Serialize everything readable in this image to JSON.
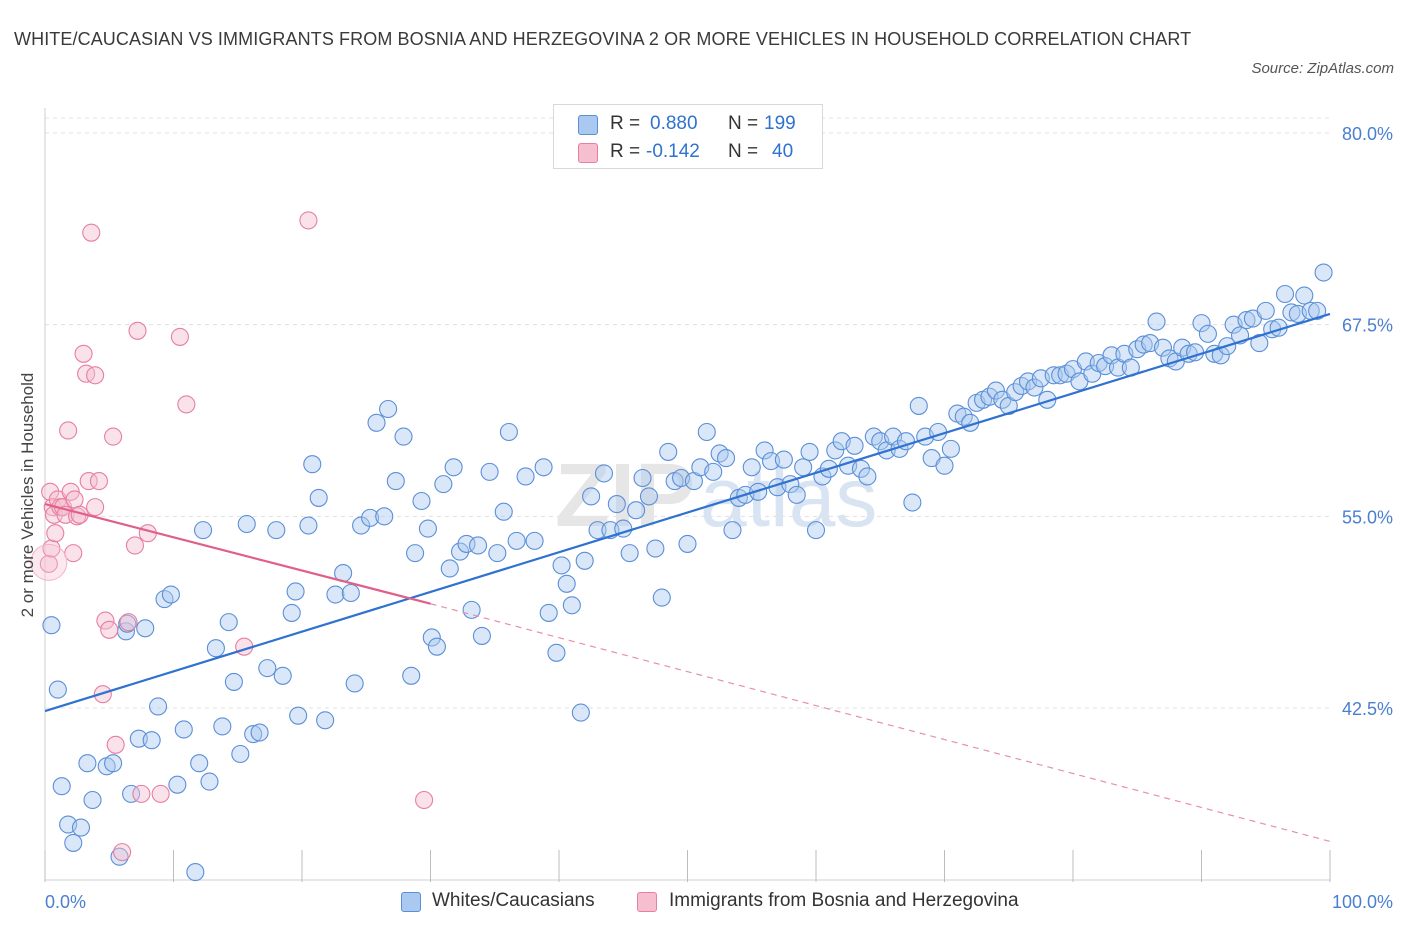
{
  "title": "WHITE/CAUCASIAN VS IMMIGRANTS FROM BOSNIA AND HERZEGOVINA 2 OR MORE VEHICLES IN HOUSEHOLD CORRELATION CHART",
  "source": "Source: ZipAtlas.com",
  "watermark": {
    "zip": "ZIP",
    "atlas": "atlas"
  },
  "colors": {
    "blue": "#5b8fd8",
    "blue_fill": "#aac9f0",
    "blue_line": "#2f72d0",
    "pink": "#e87ea0",
    "pink_fill": "#f5bfd0",
    "pink_line": "#e0608a",
    "axis_text": "#4a7fd0"
  },
  "legend": {
    "items": [
      {
        "r_label": "R =",
        "r_value": "0.880",
        "n_label": "N =",
        "n_value": "199"
      },
      {
        "r_label": "R =",
        "r_value": "-0.142",
        "n_label": "N =",
        "n_value": "40"
      }
    ]
  },
  "chart_data": {
    "type": "scatter",
    "title": "WHITE/CAUCASIAN VS IMMIGRANTS FROM BOSNIA AND HERZEGOVINA 2 OR MORE VEHICLES IN HOUSEHOLD CORRELATION CHART",
    "xlabel": "",
    "ylabel": "2 or more Vehicles in Household",
    "xlim": [
      0,
      100
    ],
    "ylim": [
      32,
      82
    ],
    "x_tick_labels": [
      "0.0%",
      "100.0%"
    ],
    "y_ticks": [
      42.5,
      55.0,
      67.5,
      80.0
    ],
    "y_tick_labels": [
      "42.5%",
      "55.0%",
      "67.5%",
      "80.0%"
    ],
    "grid": true,
    "legend_position": "top-center",
    "series": [
      {
        "name": "Whites/Caucasians",
        "color": "#5b8fd8",
        "trend": {
          "x": [
            0,
            100
          ],
          "y": [
            42.3,
            68.2
          ]
        },
        "points": [
          [
            0.5,
            47.9
          ],
          [
            1.0,
            43.7
          ],
          [
            1.3,
            37.4
          ],
          [
            1.8,
            34.9
          ],
          [
            2.2,
            33.7
          ],
          [
            2.8,
            34.7
          ],
          [
            3.3,
            38.9
          ],
          [
            3.7,
            36.5
          ],
          [
            4.8,
            38.7
          ],
          [
            5.3,
            38.9
          ],
          [
            5.8,
            32.8
          ],
          [
            6.3,
            47.5
          ],
          [
            6.4,
            48.0
          ],
          [
            6.7,
            36.9
          ],
          [
            7.3,
            40.5
          ],
          [
            7.8,
            47.7
          ],
          [
            8.3,
            40.4
          ],
          [
            8.8,
            42.6
          ],
          [
            9.3,
            49.6
          ],
          [
            9.8,
            49.9
          ],
          [
            10.3,
            37.5
          ],
          [
            10.8,
            41.1
          ],
          [
            11.7,
            31.8
          ],
          [
            12.0,
            38.9
          ],
          [
            12.3,
            54.1
          ],
          [
            12.8,
            37.7
          ],
          [
            13.3,
            46.4
          ],
          [
            13.8,
            41.3
          ],
          [
            14.3,
            48.1
          ],
          [
            14.7,
            44.2
          ],
          [
            15.2,
            39.5
          ],
          [
            15.7,
            54.5
          ],
          [
            16.2,
            40.8
          ],
          [
            16.7,
            40.9
          ],
          [
            17.3,
            45.1
          ],
          [
            18.0,
            54.1
          ],
          [
            18.5,
            44.6
          ],
          [
            19.2,
            48.7
          ],
          [
            19.5,
            50.1
          ],
          [
            19.7,
            42.0
          ],
          [
            20.5,
            54.4
          ],
          [
            20.8,
            58.4
          ],
          [
            21.3,
            56.2
          ],
          [
            21.8,
            41.7
          ],
          [
            22.6,
            49.9
          ],
          [
            23.2,
            51.3
          ],
          [
            23.8,
            50.0
          ],
          [
            24.1,
            44.1
          ],
          [
            24.6,
            54.4
          ],
          [
            25.3,
            54.9
          ],
          [
            25.8,
            61.1
          ],
          [
            26.4,
            55.0
          ],
          [
            26.7,
            62.0
          ],
          [
            27.3,
            57.3
          ],
          [
            27.9,
            60.2
          ],
          [
            28.5,
            44.6
          ],
          [
            28.8,
            52.6
          ],
          [
            29.3,
            56.0
          ],
          [
            29.8,
            54.2
          ],
          [
            30.1,
            47.1
          ],
          [
            31.0,
            57.1
          ],
          [
            31.5,
            51.6
          ],
          [
            31.8,
            58.2
          ],
          [
            32.3,
            52.7
          ],
          [
            32.8,
            53.2
          ],
          [
            33.2,
            48.9
          ],
          [
            33.7,
            53.1
          ],
          [
            34.0,
            47.2
          ],
          [
            34.6,
            57.9
          ],
          [
            35.2,
            52.6
          ],
          [
            35.7,
            55.3
          ],
          [
            36.1,
            60.5
          ],
          [
            36.7,
            53.4
          ],
          [
            37.4,
            57.6
          ],
          [
            38.1,
            53.4
          ],
          [
            38.8,
            58.2
          ],
          [
            39.2,
            48.7
          ],
          [
            39.8,
            46.1
          ],
          [
            40.2,
            51.8
          ],
          [
            40.6,
            50.6
          ],
          [
            41.0,
            49.2
          ],
          [
            41.7,
            42.2
          ],
          [
            42.0,
            52.1
          ],
          [
            42.5,
            56.3
          ],
          [
            43.0,
            54.1
          ],
          [
            43.5,
            57.8
          ],
          [
            44.0,
            54.1
          ],
          [
            44.5,
            55.8
          ],
          [
            45.0,
            54.2
          ],
          [
            45.5,
            52.6
          ],
          [
            46.0,
            55.4
          ],
          [
            46.5,
            57.5
          ],
          [
            47.0,
            56.3
          ],
          [
            47.5,
            52.9
          ],
          [
            48.0,
            49.7
          ],
          [
            48.5,
            59.2
          ],
          [
            49.0,
            57.3
          ],
          [
            49.5,
            57.5
          ],
          [
            50.0,
            53.2
          ],
          [
            50.5,
            57.3
          ],
          [
            51.0,
            58.2
          ],
          [
            51.5,
            60.5
          ],
          [
            52.0,
            57.9
          ],
          [
            52.5,
            59.1
          ],
          [
            53.0,
            58.8
          ],
          [
            53.5,
            54.1
          ],
          [
            54.0,
            56.2
          ],
          [
            54.5,
            56.4
          ],
          [
            55.0,
            58.2
          ],
          [
            55.5,
            56.6
          ],
          [
            56.0,
            59.3
          ],
          [
            56.5,
            58.6
          ],
          [
            57.0,
            56.9
          ],
          [
            57.5,
            58.7
          ],
          [
            58.0,
            57.1
          ],
          [
            58.5,
            56.4
          ],
          [
            59.0,
            58.2
          ],
          [
            59.5,
            59.2
          ],
          [
            60.0,
            54.1
          ],
          [
            60.5,
            57.6
          ],
          [
            61.0,
            58.1
          ],
          [
            61.5,
            59.3
          ],
          [
            62.0,
            59.9
          ],
          [
            62.5,
            58.3
          ],
          [
            63.0,
            59.6
          ],
          [
            63.5,
            58.1
          ],
          [
            64.0,
            57.6
          ],
          [
            64.5,
            60.2
          ],
          [
            65.0,
            59.9
          ],
          [
            65.5,
            59.3
          ],
          [
            66.0,
            60.2
          ],
          [
            66.5,
            59.4
          ],
          [
            67.0,
            59.9
          ],
          [
            67.5,
            55.9
          ],
          [
            68.0,
            62.2
          ],
          [
            68.5,
            60.2
          ],
          [
            69.0,
            58.8
          ],
          [
            69.5,
            60.5
          ],
          [
            70.0,
            58.3
          ],
          [
            70.5,
            59.4
          ],
          [
            71.0,
            61.7
          ],
          [
            71.5,
            61.5
          ],
          [
            72.0,
            61.1
          ],
          [
            72.5,
            62.4
          ],
          [
            73.0,
            62.6
          ],
          [
            73.5,
            62.8
          ],
          [
            74.0,
            63.2
          ],
          [
            74.5,
            62.6
          ],
          [
            75.0,
            62.2
          ],
          [
            75.5,
            63.1
          ],
          [
            76.0,
            63.5
          ],
          [
            76.5,
            63.8
          ],
          [
            77.0,
            63.4
          ],
          [
            77.5,
            64.0
          ],
          [
            78.0,
            62.6
          ],
          [
            78.5,
            64.2
          ],
          [
            79.0,
            64.2
          ],
          [
            79.5,
            64.3
          ],
          [
            80.0,
            64.6
          ],
          [
            80.5,
            63.8
          ],
          [
            81.0,
            65.1
          ],
          [
            81.5,
            64.3
          ],
          [
            82.0,
            65.0
          ],
          [
            82.5,
            64.8
          ],
          [
            83.0,
            65.5
          ],
          [
            83.5,
            64.7
          ],
          [
            84.0,
            65.6
          ],
          [
            84.5,
            64.7
          ],
          [
            85.0,
            65.9
          ],
          [
            85.5,
            66.2
          ],
          [
            86.0,
            66.3
          ],
          [
            86.5,
            67.7
          ],
          [
            87.0,
            66.0
          ],
          [
            87.5,
            65.3
          ],
          [
            88.0,
            65.1
          ],
          [
            88.5,
            66.0
          ],
          [
            89.0,
            65.6
          ],
          [
            89.5,
            65.7
          ],
          [
            90.0,
            67.6
          ],
          [
            90.5,
            66.9
          ],
          [
            91.0,
            65.6
          ],
          [
            91.5,
            65.5
          ],
          [
            92.0,
            66.1
          ],
          [
            92.5,
            67.5
          ],
          [
            93.0,
            66.8
          ],
          [
            93.5,
            67.8
          ],
          [
            94.0,
            67.9
          ],
          [
            94.5,
            66.3
          ],
          [
            95.0,
            68.4
          ],
          [
            95.5,
            67.2
          ],
          [
            96.0,
            67.3
          ],
          [
            96.5,
            69.5
          ],
          [
            97.0,
            68.3
          ],
          [
            97.5,
            68.2
          ],
          [
            98.0,
            69.4
          ],
          [
            98.5,
            68.4
          ],
          [
            99.0,
            68.4
          ],
          [
            99.5,
            70.9
          ],
          [
            30.5,
            46.5
          ]
        ]
      },
      {
        "name": "Immigrants from Bosnia and Herzegovina",
        "color": "#e87ea0",
        "trend": {
          "x": [
            0,
            30
          ],
          "y": [
            55.8,
            49.3
          ]
        },
        "trend_extension": {
          "x": [
            30,
            100
          ],
          "y": [
            49.3,
            33.8
          ]
        },
        "points": [
          [
            0.3,
            51.9
          ],
          [
            0.4,
            56.6
          ],
          [
            0.5,
            52.9
          ],
          [
            0.6,
            55.6
          ],
          [
            0.7,
            55.1
          ],
          [
            0.8,
            53.9
          ],
          [
            1.0,
            56.1
          ],
          [
            1.2,
            55.6
          ],
          [
            1.4,
            55.6
          ],
          [
            1.6,
            55.1
          ],
          [
            1.8,
            60.6
          ],
          [
            2.0,
            56.6
          ],
          [
            2.2,
            52.6
          ],
          [
            2.3,
            56.1
          ],
          [
            2.5,
            55.0
          ],
          [
            2.7,
            55.1
          ],
          [
            3.0,
            65.6
          ],
          [
            3.2,
            64.3
          ],
          [
            3.4,
            57.3
          ],
          [
            3.6,
            73.5
          ],
          [
            3.9,
            55.6
          ],
          [
            3.9,
            64.2
          ],
          [
            4.2,
            57.3
          ],
          [
            4.5,
            43.4
          ],
          [
            4.7,
            48.2
          ],
          [
            5.0,
            47.6
          ],
          [
            5.3,
            60.2
          ],
          [
            5.5,
            40.1
          ],
          [
            6.0,
            33.1
          ],
          [
            6.5,
            48.1
          ],
          [
            7.0,
            53.1
          ],
          [
            7.2,
            67.1
          ],
          [
            8.0,
            53.9
          ],
          [
            9.0,
            36.9
          ],
          [
            10.5,
            66.7
          ],
          [
            11.0,
            62.3
          ],
          [
            15.5,
            46.5
          ],
          [
            20.5,
            74.3
          ],
          [
            29.5,
            36.5
          ],
          [
            7.5,
            36.9
          ]
        ]
      }
    ]
  }
}
